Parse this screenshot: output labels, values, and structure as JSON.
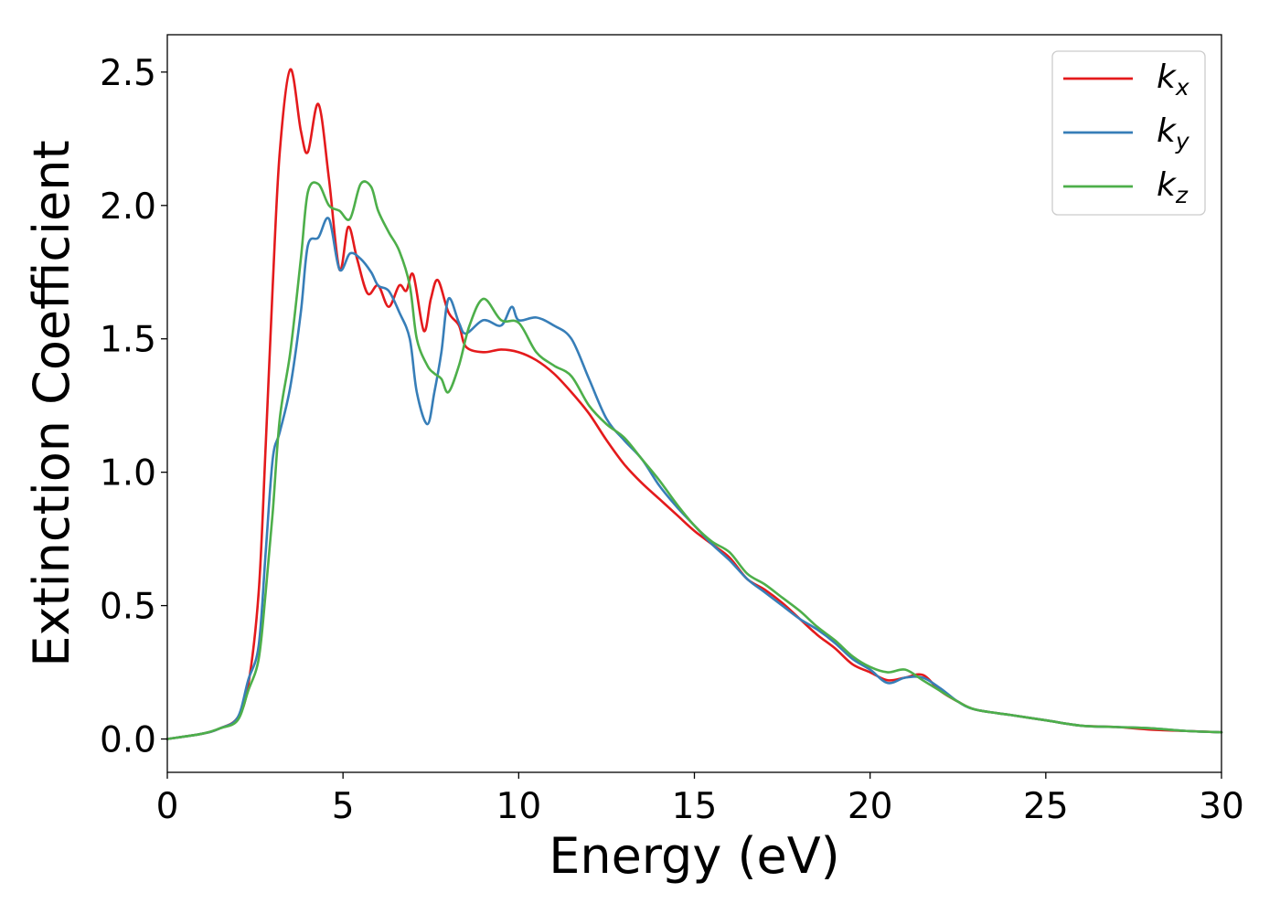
{
  "chart_data": {
    "type": "line",
    "xlabel": "Energy (eV)",
    "ylabel": "Extinction Coefficient",
    "xlim": [
      0,
      30
    ],
    "ylim": [
      -0.125,
      2.64
    ],
    "xticks": [
      0,
      5,
      10,
      15,
      20,
      25,
      30
    ],
    "yticks": [
      0.0,
      0.5,
      1.0,
      1.5,
      2.0,
      2.5
    ],
    "xtick_labels": [
      "0",
      "5",
      "10",
      "15",
      "20",
      "25",
      "30"
    ],
    "ytick_labels": [
      "0.0",
      "0.5",
      "1.0",
      "1.5",
      "2.0",
      "2.5"
    ],
    "grid": false,
    "legend_position": "top-right",
    "series": [
      {
        "name": "k_x",
        "label_base": "k",
        "label_sub": "x",
        "color": "#e41a1c",
        "x": [
          0,
          1,
          1.5,
          2.0,
          2.3,
          2.6,
          2.8,
          3.0,
          3.2,
          3.5,
          3.8,
          4.0,
          4.3,
          4.6,
          4.9,
          5.15,
          5.4,
          5.7,
          6.0,
          6.3,
          6.6,
          6.8,
          7.0,
          7.3,
          7.5,
          7.7,
          8.0,
          8.3,
          8.5,
          9.0,
          9.5,
          10.0,
          10.5,
          11.0,
          11.5,
          12.0,
          12.5,
          13.0,
          13.5,
          14.0,
          14.5,
          15.0,
          15.5,
          16.0,
          16.5,
          17.0,
          17.5,
          18.0,
          18.5,
          19.0,
          19.5,
          20.0,
          20.5,
          21.0,
          21.5,
          22.0,
          22.5,
          23.0,
          24.0,
          25.0,
          26.0,
          27.0,
          28.0,
          29.0,
          30.0
        ],
        "y": [
          0.0,
          0.02,
          0.04,
          0.08,
          0.2,
          0.55,
          1.1,
          1.7,
          2.2,
          2.51,
          2.28,
          2.2,
          2.38,
          2.1,
          1.76,
          1.92,
          1.8,
          1.67,
          1.7,
          1.62,
          1.7,
          1.68,
          1.74,
          1.53,
          1.65,
          1.72,
          1.6,
          1.55,
          1.47,
          1.45,
          1.46,
          1.45,
          1.42,
          1.37,
          1.3,
          1.22,
          1.12,
          1.03,
          0.96,
          0.9,
          0.84,
          0.78,
          0.73,
          0.68,
          0.6,
          0.56,
          0.51,
          0.45,
          0.39,
          0.34,
          0.28,
          0.25,
          0.22,
          0.23,
          0.24,
          0.18,
          0.14,
          0.11,
          0.09,
          0.07,
          0.05,
          0.045,
          0.035,
          0.03,
          0.025
        ]
      },
      {
        "name": "k_y",
        "label_base": "k",
        "label_sub": "y",
        "color": "#377eb8",
        "x": [
          0,
          1,
          1.5,
          2.0,
          2.3,
          2.6,
          2.8,
          3.0,
          3.2,
          3.5,
          3.8,
          4.0,
          4.3,
          4.6,
          4.9,
          5.2,
          5.5,
          5.8,
          6.0,
          6.3,
          6.6,
          6.9,
          7.1,
          7.4,
          7.6,
          7.8,
          8.0,
          8.3,
          8.5,
          9.0,
          9.5,
          9.8,
          10.0,
          10.5,
          11.0,
          11.5,
          12.0,
          12.5,
          13.0,
          13.5,
          14.0,
          14.5,
          15.0,
          15.5,
          16.0,
          16.5,
          17.0,
          17.5,
          18.0,
          18.5,
          19.0,
          19.5,
          20.0,
          20.5,
          21.0,
          21.5,
          22.0,
          22.5,
          23.0,
          24.0,
          25.0,
          26.0,
          27.0,
          28.0,
          29.0,
          30.0
        ],
        "y": [
          0.0,
          0.02,
          0.04,
          0.08,
          0.22,
          0.35,
          0.7,
          1.05,
          1.15,
          1.32,
          1.6,
          1.85,
          1.88,
          1.95,
          1.76,
          1.82,
          1.8,
          1.75,
          1.7,
          1.68,
          1.6,
          1.5,
          1.3,
          1.18,
          1.3,
          1.45,
          1.65,
          1.56,
          1.52,
          1.57,
          1.55,
          1.62,
          1.57,
          1.58,
          1.55,
          1.5,
          1.35,
          1.2,
          1.12,
          1.05,
          0.95,
          0.87,
          0.8,
          0.73,
          0.67,
          0.6,
          0.55,
          0.5,
          0.45,
          0.41,
          0.36,
          0.3,
          0.26,
          0.21,
          0.23,
          0.23,
          0.19,
          0.14,
          0.11,
          0.09,
          0.07,
          0.05,
          0.045,
          0.04,
          0.03,
          0.025
        ]
      },
      {
        "name": "k_z",
        "label_base": "k",
        "label_sub": "z",
        "color": "#4daf4a",
        "x": [
          0,
          1,
          1.5,
          2.0,
          2.3,
          2.6,
          2.8,
          3.0,
          3.2,
          3.5,
          3.8,
          4.0,
          4.3,
          4.6,
          4.9,
          5.2,
          5.5,
          5.8,
          6.0,
          6.3,
          6.6,
          6.9,
          7.1,
          7.4,
          7.6,
          7.8,
          8.0,
          8.3,
          8.6,
          9.0,
          9.5,
          10.0,
          10.5,
          11.0,
          11.5,
          12.0,
          12.5,
          13.0,
          13.5,
          14.0,
          14.5,
          15.0,
          15.5,
          16.0,
          16.5,
          17.0,
          17.5,
          18.0,
          18.5,
          19.0,
          19.5,
          20.0,
          20.5,
          21.0,
          21.5,
          22.0,
          22.5,
          23.0,
          24.0,
          25.0,
          26.0,
          27.0,
          28.0,
          29.0,
          30.0
        ],
        "y": [
          0.0,
          0.02,
          0.04,
          0.07,
          0.18,
          0.3,
          0.55,
          0.85,
          1.2,
          1.45,
          1.8,
          2.05,
          2.08,
          2.0,
          1.98,
          1.95,
          2.08,
          2.07,
          1.98,
          1.9,
          1.83,
          1.7,
          1.5,
          1.4,
          1.37,
          1.35,
          1.3,
          1.4,
          1.55,
          1.65,
          1.57,
          1.56,
          1.45,
          1.4,
          1.36,
          1.25,
          1.18,
          1.13,
          1.05,
          0.97,
          0.88,
          0.8,
          0.74,
          0.7,
          0.62,
          0.58,
          0.53,
          0.48,
          0.42,
          0.37,
          0.31,
          0.27,
          0.25,
          0.26,
          0.22,
          0.18,
          0.14,
          0.11,
          0.09,
          0.07,
          0.05,
          0.045,
          0.04,
          0.03,
          0.025
        ]
      }
    ]
  }
}
